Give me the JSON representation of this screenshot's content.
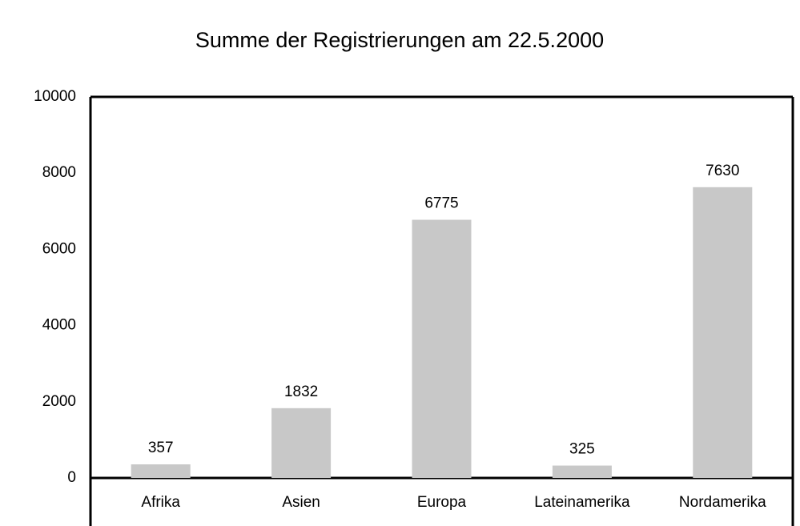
{
  "chart_data": {
    "type": "bar",
    "title": "Summe der Registrierungen am 22.5.2000",
    "categories": [
      "Afrika",
      "Asien",
      "Europa",
      "Lateinamerika",
      "Nordamerika"
    ],
    "values": [
      357,
      1832,
      6775,
      325,
      7630
    ],
    "color": "#c8c8c8",
    "ylim": [
      0,
      10000
    ],
    "yticks": [
      0,
      2000,
      4000,
      6000,
      8000,
      10000
    ],
    "grid": false,
    "data_labels": true
  }
}
